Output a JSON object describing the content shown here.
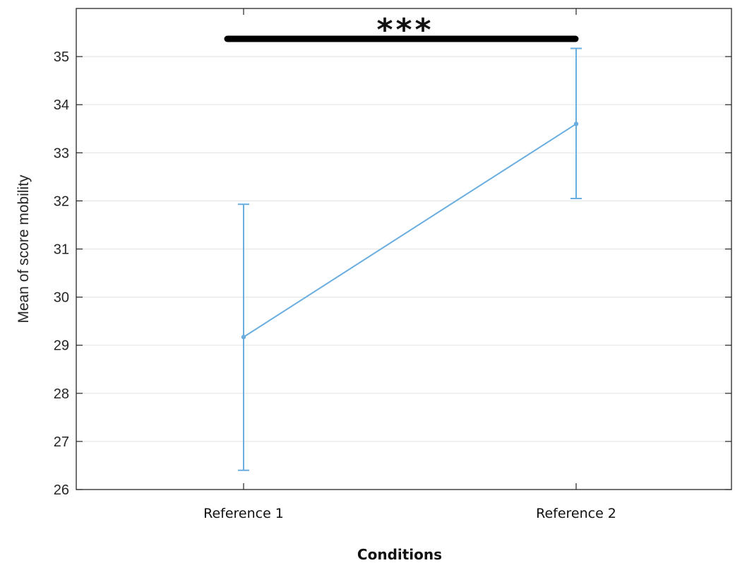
{
  "chart_data": {
    "type": "line",
    "title": "",
    "xlabel": "Conditions",
    "ylabel": "Mean of score mobility",
    "categories": [
      "Reference 1",
      "Reference 2"
    ],
    "series": [
      {
        "values": [
          29.17,
          33.6
        ],
        "error_low": [
          26.4,
          32.05
        ],
        "error_high": [
          31.93,
          35.17
        ],
        "color": "#6aaee0"
      }
    ],
    "ylim": [
      26,
      36
    ],
    "yticks": [
      "26",
      "27",
      "28",
      "29",
      "30",
      "31",
      "32",
      "33",
      "34",
      "35"
    ],
    "grid": "horizontal",
    "significance": {
      "label": "***",
      "between": [
        "Reference 1",
        "Reference 2"
      ]
    }
  }
}
